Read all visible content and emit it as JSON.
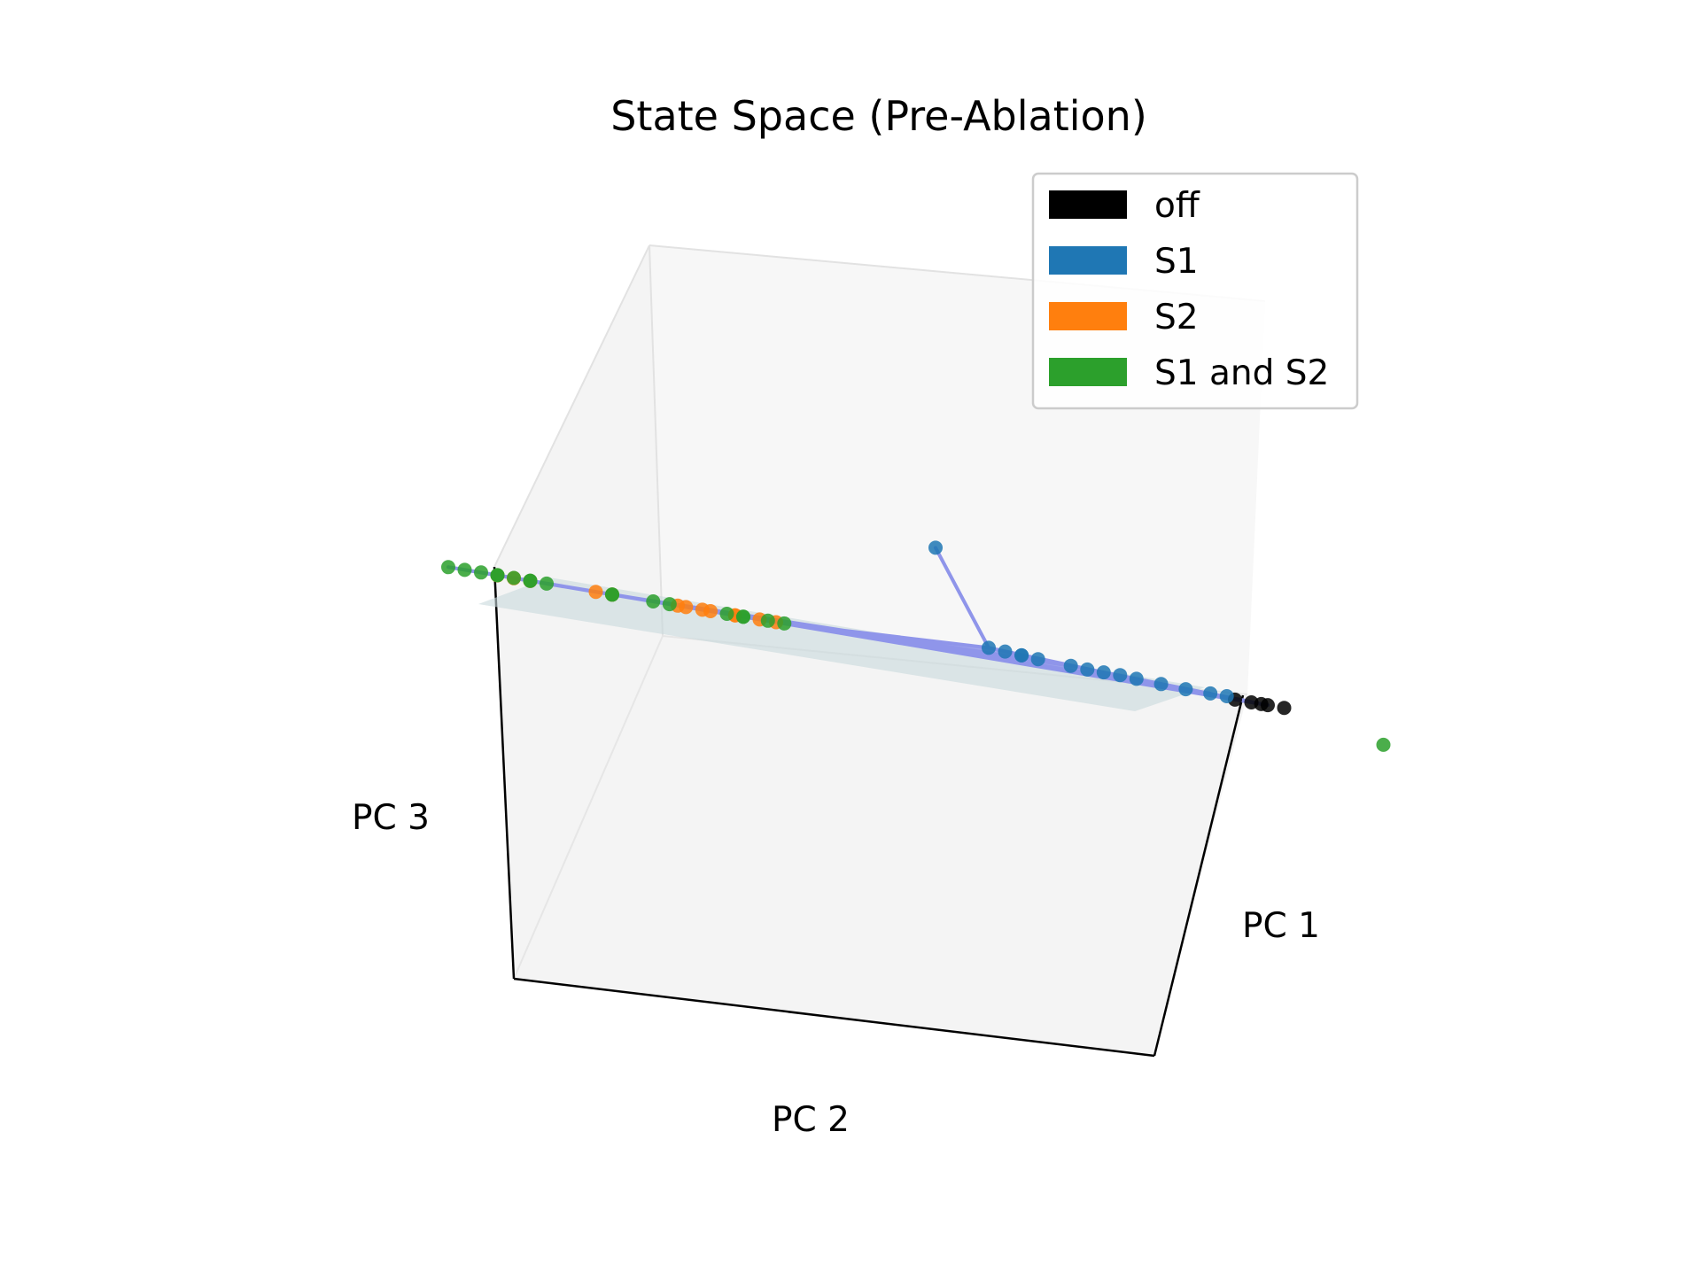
{
  "chart_data": {
    "type": "scatter",
    "projection": "3d",
    "title": "State Space (Pre-Ablation)",
    "xlabel": "PC 1",
    "ylabel": "PC 2",
    "zlabel": "PC 3",
    "grid": false,
    "legend_position": "top-right",
    "trajectory_color": "#8f95ea",
    "plane_color": "#c8d8dc",
    "legend": [
      {
        "label": "off",
        "color": "#000000"
      },
      {
        "label": "S1",
        "color": "#1f77b4"
      },
      {
        "label": "S2",
        "color": "#ff7f0e"
      },
      {
        "label": "S1 and S2",
        "color": "#2ca02c"
      }
    ],
    "series": [
      {
        "name": "off",
        "color": "#000000",
        "points": [
          [
            1.6,
            -1.0,
            0.0
          ],
          [
            1.55,
            -0.95,
            0.0
          ],
          [
            1.5,
            -0.9,
            0.0
          ],
          [
            1.65,
            -1.05,
            0.0
          ],
          [
            1.58,
            -0.98,
            0.0
          ]
        ]
      },
      {
        "name": "S1",
        "color": "#1f77b4",
        "points": [
          [
            1.2,
            -0.4,
            0.05
          ],
          [
            1.25,
            -0.45,
            0.05
          ],
          [
            1.3,
            -0.5,
            0.04
          ],
          [
            1.35,
            -0.6,
            0.03
          ],
          [
            1.4,
            -0.7,
            0.02
          ],
          [
            1.45,
            -0.8,
            0.02
          ],
          [
            1.5,
            -0.85,
            0.02
          ],
          [
            1.1,
            -0.3,
            0.06
          ],
          [
            1.15,
            -0.35,
            0.05
          ],
          [
            1.0,
            0.1,
            0.1
          ],
          [
            1.05,
            0.05,
            0.09
          ],
          [
            1.1,
            0.0,
            0.08
          ],
          [
            1.15,
            0.05,
            0.08
          ],
          [
            1.2,
            0.0,
            0.07
          ],
          [
            0.9,
            0.3,
            1.0
          ]
        ]
      },
      {
        "name": "S2",
        "color": "#ff7f0e",
        "points": [
          [
            -1.6,
            0.5,
            0.0
          ],
          [
            -1.55,
            0.45,
            0.0
          ],
          [
            -1.5,
            0.4,
            0.0
          ],
          [
            -0.9,
            0.6,
            0.0
          ],
          [
            -0.85,
            0.55,
            0.0
          ],
          [
            -0.6,
            0.35,
            0.0
          ],
          [
            -0.5,
            0.3,
            0.0
          ],
          [
            -0.4,
            0.25,
            0.0
          ],
          [
            -0.3,
            0.2,
            0.0
          ],
          [
            -0.35,
            0.3,
            0.0
          ],
          [
            -0.45,
            0.4,
            0.0
          ],
          [
            -0.55,
            0.45,
            0.0
          ],
          [
            -0.25,
            0.15,
            0.0
          ]
        ]
      },
      {
        "name": "S1 and S2",
        "color": "#2ca02c",
        "points": [
          [
            -1.7,
            0.7,
            0.0
          ],
          [
            -1.65,
            0.65,
            0.0
          ],
          [
            -1.2,
            1.0,
            0.0
          ],
          [
            -1.15,
            0.95,
            0.0
          ],
          [
            -1.1,
            1.0,
            0.0
          ],
          [
            -1.05,
            0.95,
            0.0
          ],
          [
            -1.0,
            0.9,
            0.0
          ],
          [
            -1.2,
            0.7,
            0.0
          ],
          [
            -1.15,
            0.65,
            0.0
          ],
          [
            -0.8,
            0.6,
            0.0
          ],
          [
            -0.75,
            0.65,
            0.0
          ],
          [
            -0.4,
            0.75,
            0.0
          ],
          [
            -0.35,
            0.7,
            0.0
          ],
          [
            -0.2,
            0.5,
            0.0
          ],
          [
            -0.5,
            0.1,
            0.0
          ],
          [
            -0.45,
            0.15,
            0.0
          ],
          [
            0.1,
            0.55,
            0.0
          ],
          [
            0.15,
            0.5,
            0.0
          ],
          [
            2.1,
            -1.2,
            -0.2
          ]
        ]
      }
    ],
    "trajectory": [
      [
        1.6,
        -1.0,
        0.0
      ],
      [
        1.2,
        -0.4,
        0.05
      ],
      [
        1.0,
        0.1,
        0.1
      ],
      [
        0.9,
        0.3,
        1.0
      ],
      [
        1.0,
        0.1,
        0.1
      ],
      [
        0.15,
        0.5,
        0.0
      ],
      [
        -0.4,
        0.75,
        0.0
      ],
      [
        -1.1,
        1.0,
        0.0
      ],
      [
        -1.7,
        0.7,
        0.0
      ],
      [
        -1.6,
        0.5,
        0.0
      ],
      [
        -0.3,
        0.2,
        0.0
      ],
      [
        1.1,
        -0.3,
        0.06
      ],
      [
        -0.8,
        0.6,
        0.0
      ],
      [
        -1.2,
        0.7,
        0.0
      ],
      [
        1.45,
        -0.8,
        0.02
      ],
      [
        -0.5,
        0.1,
        0.0
      ],
      [
        -0.9,
        0.6,
        0.0
      ],
      [
        1.6,
        -1.0,
        0.0
      ]
    ]
  }
}
